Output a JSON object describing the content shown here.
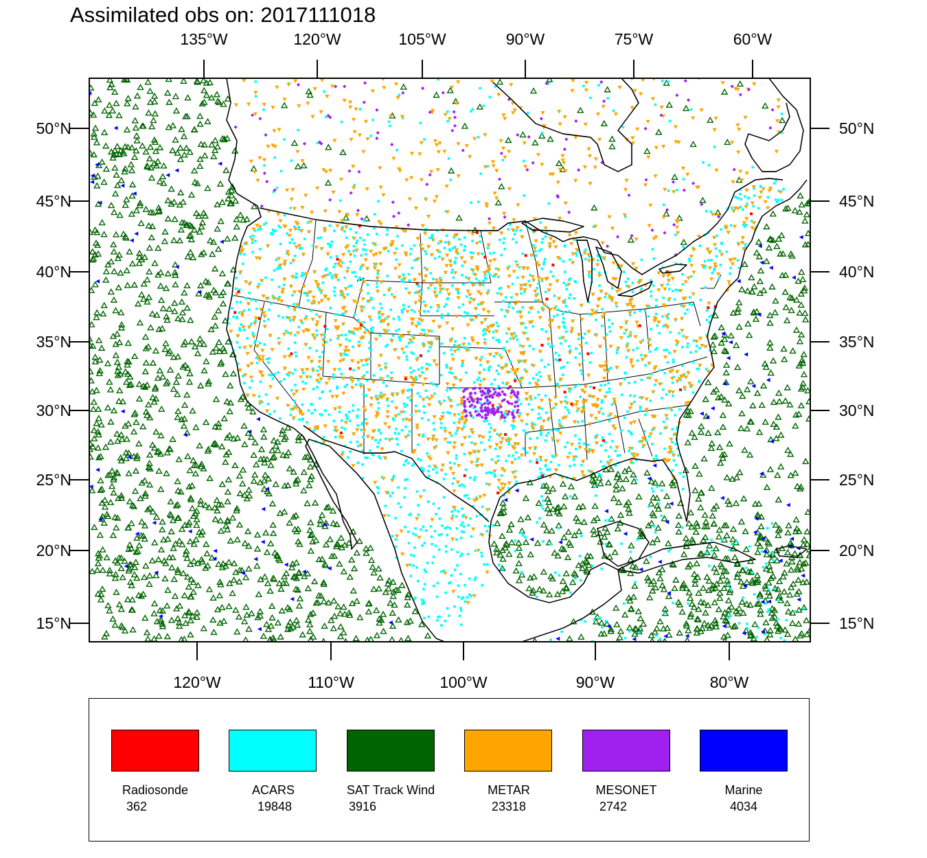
{
  "title": "Assimilated obs on: 2017111018",
  "top_axis_labels": [
    "135°W",
    "120°W",
    "105°W",
    "90°W",
    "75°W",
    "60°W"
  ],
  "bottom_axis_labels": [
    "120°W",
    "110°W",
    "100°W",
    "90°W",
    "80°W"
  ],
  "lat_labels": [
    "50°N",
    "45°N",
    "40°N",
    "35°N",
    "30°N",
    "25°N",
    "20°N",
    "15°N"
  ],
  "legend": [
    {
      "name": "Radiosonde",
      "count": "362",
      "color": "#ff0000"
    },
    {
      "name": "ACARS",
      "count": "19848",
      "color": "#00ffff"
    },
    {
      "name": "SAT Track Wind",
      "count": "3916",
      "color": "#006400"
    },
    {
      "name": "METAR",
      "count": "23318",
      "color": "#ffa500"
    },
    {
      "name": "MESONET",
      "count": "2742",
      "color": "#a020f0"
    },
    {
      "name": "Marine",
      "count": "4034",
      "color": "#0000ff"
    }
  ],
  "map": {
    "projection": "Lambert conformal conic (CONUS domain)",
    "marker_shapes": {
      "SAT Track Wind": "open-triangle-up",
      "METAR": "filled-triangle-down",
      "ACARS": "square-dot",
      "MESONET": "diamond",
      "Marine": "filled-triangle-left"
    }
  }
}
